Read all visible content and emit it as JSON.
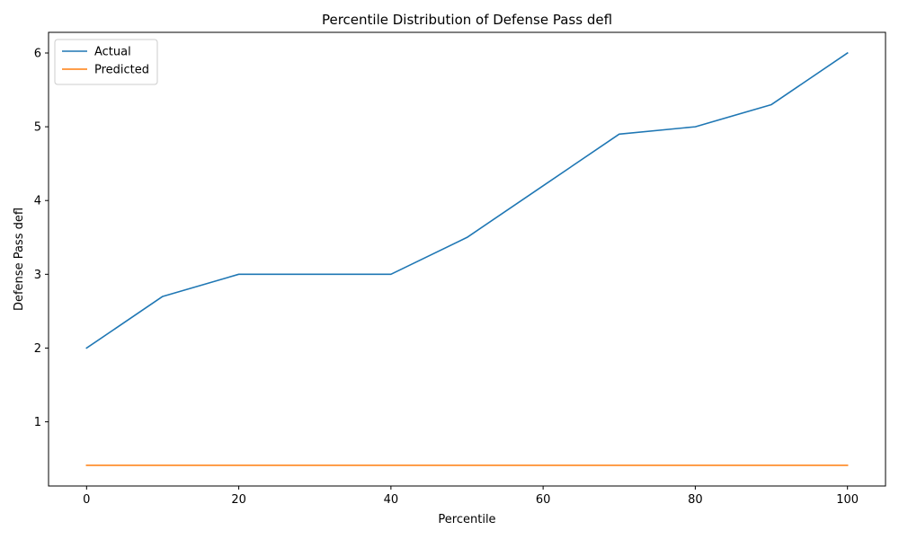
{
  "chart_data": {
    "type": "line",
    "title": "Percentile Distribution of Defense Pass defl",
    "xlabel": "Percentile",
    "ylabel": "Defense Pass defl",
    "x": [
      0,
      10,
      20,
      30,
      40,
      50,
      60,
      70,
      80,
      90,
      100
    ],
    "xlim": [
      -5,
      105
    ],
    "ylim": [
      0.13,
      6.28
    ],
    "xticks": [
      0,
      20,
      40,
      60,
      80,
      100
    ],
    "xtick_labels": [
      "0",
      "20",
      "40",
      "60",
      "80",
      "100"
    ],
    "yticks": [
      1,
      2,
      3,
      4,
      5,
      6
    ],
    "ytick_labels": [
      "1",
      "2",
      "3",
      "4",
      "5",
      "6"
    ],
    "grid": false,
    "legend_position": "top-left",
    "series": [
      {
        "name": "Actual",
        "color": "#1f77b4",
        "values": [
          2.0,
          2.7,
          3.0,
          3.0,
          3.0,
          3.5,
          4.2,
          4.9,
          5.0,
          5.3,
          6.0
        ]
      },
      {
        "name": "Predicted",
        "color": "#ff7f0e",
        "values": [
          0.41,
          0.41,
          0.41,
          0.41,
          0.41,
          0.41,
          0.41,
          0.41,
          0.41,
          0.41,
          0.41
        ]
      }
    ]
  }
}
